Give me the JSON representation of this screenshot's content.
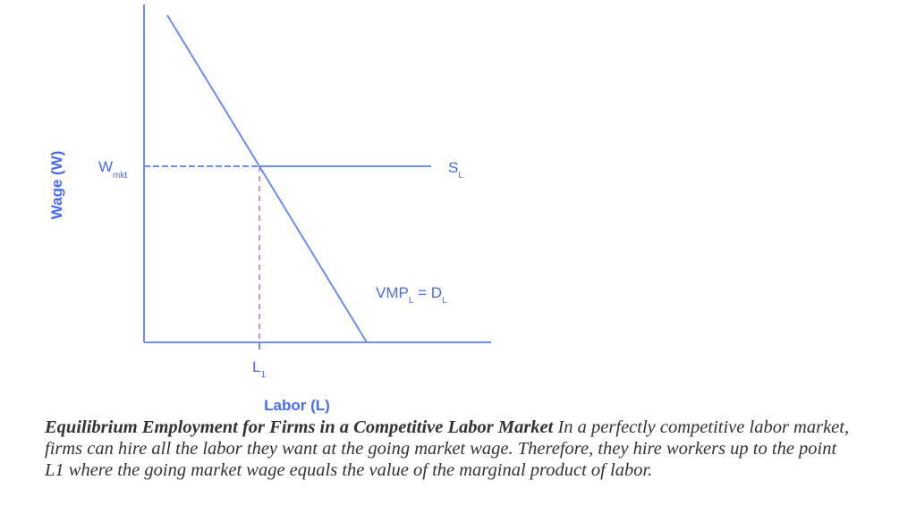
{
  "diagram": {
    "y_axis_label": "Wage (W)",
    "x_axis_label": "Labor (L)",
    "wage_label": {
      "main": "W",
      "sub": "mkt"
    },
    "supply_label": {
      "main": "S",
      "sub": "L"
    },
    "demand_label": {
      "main1": "VMP",
      "sub1": "L",
      "eq": " = D",
      "sub2": "L"
    },
    "quantity_label": {
      "main": "L",
      "sub": "1"
    },
    "colors": {
      "lines": "#6f8ff0",
      "labels": "#4a6cf0",
      "vertical_dash": "#b070f0"
    }
  },
  "caption": {
    "title": "Equilibrium Employment for Firms in a Competitive Labor Market",
    "text": " In a perfectly competitive labor market, firms can hire all the labor they want at the going market wage. Therefore, they hire workers up to the point L1 where the going market wage equals the value of the marginal product of labor."
  }
}
